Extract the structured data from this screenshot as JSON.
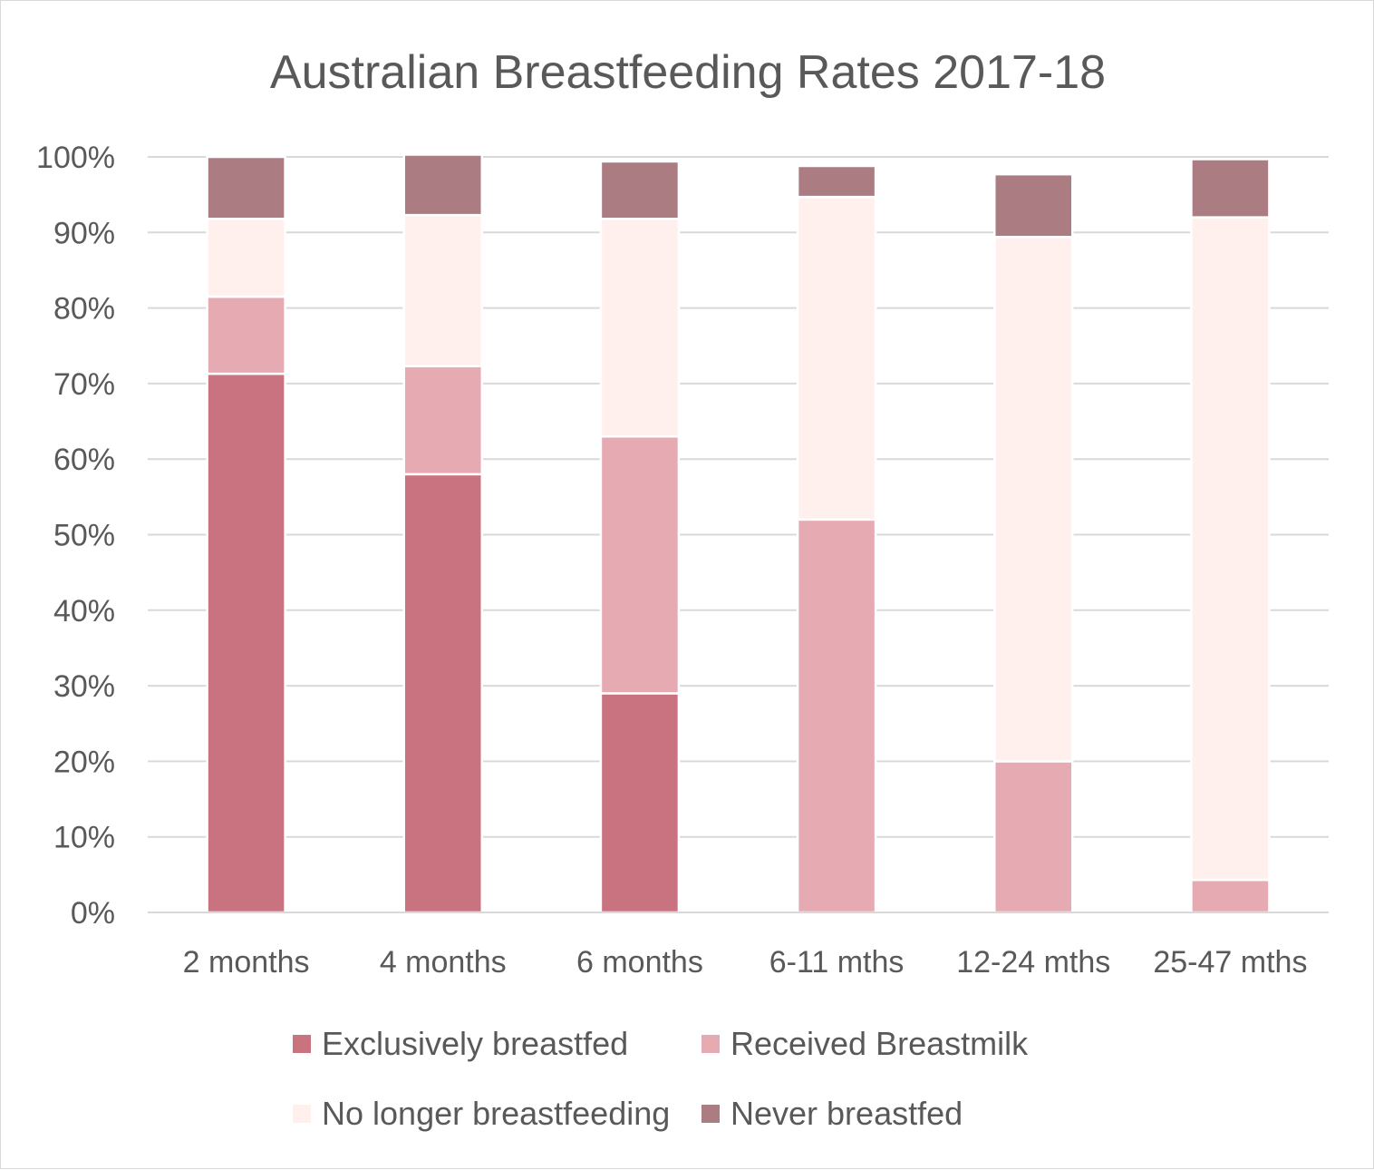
{
  "chart_data": {
    "type": "bar",
    "stacked": true,
    "title": "Australian Breastfeeding Rates 2017-18",
    "xlabel": "",
    "ylabel": "",
    "categories": [
      "2 months",
      "4 months",
      "6 months",
      "6-11 mths",
      "12-24 mths",
      "25-47 mths"
    ],
    "series": [
      {
        "name": "Exclusively breastfed",
        "color": "#c97380",
        "values": [
          71.3,
          58,
          29,
          0,
          0,
          0
        ]
      },
      {
        "name": "Received Breastmilk",
        "color": "#e6aab2",
        "values": [
          10.2,
          14.3,
          34,
          52,
          20,
          4.3
        ]
      },
      {
        "name": "No longer breastfeeding",
        "color": "#fff0ee",
        "values": [
          10.3,
          20,
          28.8,
          42.7,
          69.4,
          87.7
        ]
      },
      {
        "name": "Never breastfed",
        "color": "#ab7d83",
        "values": [
          8.2,
          8,
          7.6,
          4.1,
          8.3,
          7.7
        ]
      }
    ],
    "ylim": [
      0,
      100
    ],
    "yticks": [
      "0%",
      "10%",
      "20%",
      "30%",
      "40%",
      "50%",
      "60%",
      "70%",
      "80%",
      "90%",
      "100%"
    ],
    "grid": true,
    "legend": "bottom"
  }
}
